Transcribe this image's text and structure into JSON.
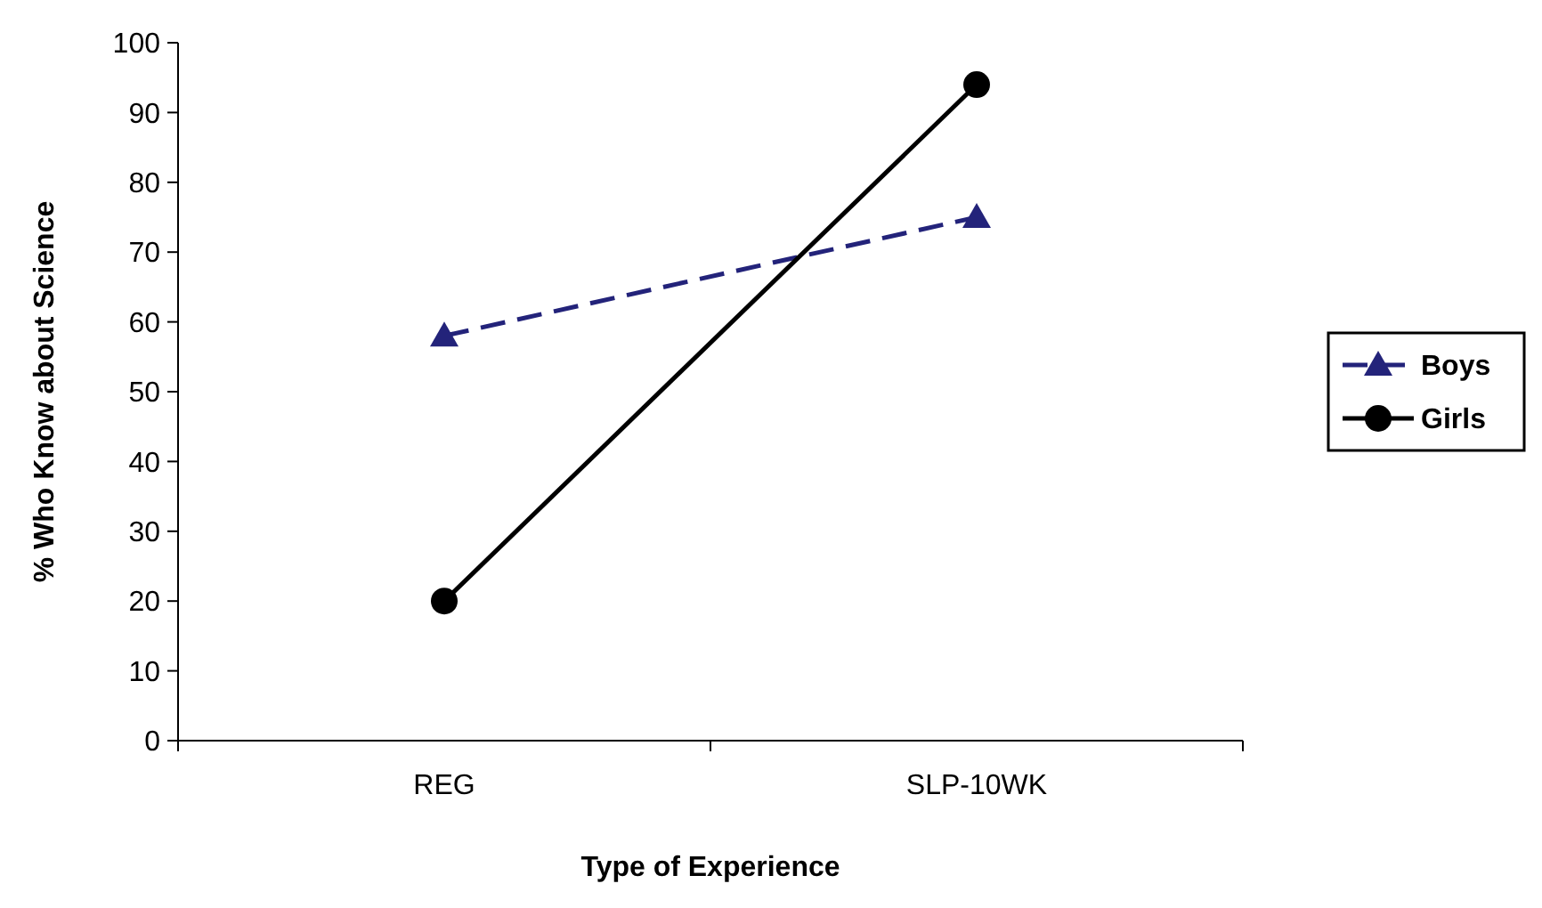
{
  "chart_data": {
    "type": "line",
    "xlabel": "Type of Experience",
    "ylabel": "% Who Know about Science",
    "categories": [
      "REG",
      "SLP-10WK"
    ],
    "series": [
      {
        "name": "Boys",
        "color": "#23237a",
        "values": [
          58,
          75
        ],
        "marker": "triangle",
        "line_style": "dashed"
      },
      {
        "name": "Girls",
        "color": "#000000",
        "values": [
          20,
          94
        ],
        "marker": "circle",
        "line_style": "solid"
      }
    ],
    "ylim": [
      0,
      100
    ],
    "yticks": [
      0,
      10,
      20,
      30,
      40,
      50,
      60,
      70,
      80,
      90,
      100
    ],
    "grid": false,
    "legend": "right"
  }
}
